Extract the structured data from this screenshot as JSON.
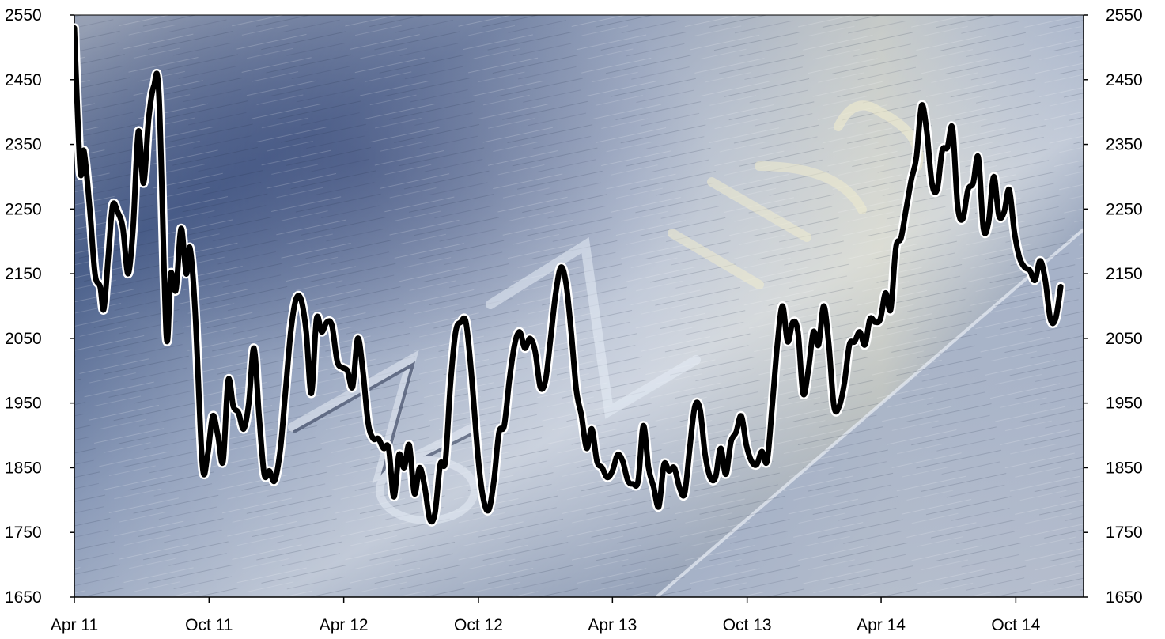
{
  "chart_data": {
    "type": "line",
    "title": "",
    "xlabel": "",
    "ylabel": "",
    "ylim": [
      1650,
      2550
    ],
    "yticks": [
      1650,
      1750,
      1850,
      1950,
      2050,
      2150,
      2250,
      2350,
      2450,
      2550
    ],
    "x_range": [
      "2011-04",
      "2015-01"
    ],
    "xticks": [
      {
        "date": "2011-04",
        "label": "Apr 11"
      },
      {
        "date": "2011-10",
        "label": "Oct 11"
      },
      {
        "date": "2012-04",
        "label": "Apr 12"
      },
      {
        "date": "2012-10",
        "label": "Oct 12"
      },
      {
        "date": "2013-04",
        "label": "Apr 13"
      },
      {
        "date": "2013-10",
        "label": "Oct 13"
      },
      {
        "date": "2014-04",
        "label": "Apr 14"
      },
      {
        "date": "2014-10",
        "label": "Oct 14"
      }
    ],
    "grid": false,
    "legend": "none",
    "background": "brushed zinc metal photo with embossed 'Zinc' lettering",
    "line_color": "#000000",
    "series": [
      {
        "points": [
          [
            "2011-04-01",
            2530
          ],
          [
            "2011-04-09",
            2310
          ],
          [
            "2011-04-14",
            2340
          ],
          [
            "2011-04-22",
            2250
          ],
          [
            "2011-04-29",
            2150
          ],
          [
            "2011-05-06",
            2130
          ],
          [
            "2011-05-11",
            2095
          ],
          [
            "2011-05-17",
            2175
          ],
          [
            "2011-05-23",
            2255
          ],
          [
            "2011-05-30",
            2245
          ],
          [
            "2011-06-06",
            2220
          ],
          [
            "2011-06-13",
            2150
          ],
          [
            "2011-06-20",
            2225
          ],
          [
            "2011-06-27",
            2370
          ],
          [
            "2011-07-04",
            2290
          ],
          [
            "2011-07-11",
            2390
          ],
          [
            "2011-07-18",
            2440
          ],
          [
            "2011-07-25",
            2425
          ],
          [
            "2011-08-04",
            2055
          ],
          [
            "2011-08-10",
            2150
          ],
          [
            "2011-08-17",
            2125
          ],
          [
            "2011-08-24",
            2220
          ],
          [
            "2011-08-31",
            2150
          ],
          [
            "2011-09-05",
            2190
          ],
          [
            "2011-09-12",
            2095
          ],
          [
            "2011-09-22",
            1855
          ],
          [
            "2011-09-29",
            1870
          ],
          [
            "2011-10-06",
            1930
          ],
          [
            "2011-10-13",
            1900
          ],
          [
            "2011-10-20",
            1860
          ],
          [
            "2011-10-27",
            1985
          ],
          [
            "2011-11-03",
            1945
          ],
          [
            "2011-11-10",
            1935
          ],
          [
            "2011-11-17",
            1910
          ],
          [
            "2011-11-24",
            1950
          ],
          [
            "2011-12-01",
            2035
          ],
          [
            "2011-12-08",
            1930
          ],
          [
            "2011-12-15",
            1840
          ],
          [
            "2011-12-22",
            1845
          ],
          [
            "2011-12-29",
            1830
          ],
          [
            "2012-01-06",
            1880
          ],
          [
            "2012-01-13",
            1970
          ],
          [
            "2012-01-20",
            2060
          ],
          [
            "2012-01-27",
            2110
          ],
          [
            "2012-02-03",
            2110
          ],
          [
            "2012-02-10",
            2060
          ],
          [
            "2012-02-17",
            1965
          ],
          [
            "2012-02-24",
            2080
          ],
          [
            "2012-03-02",
            2060
          ],
          [
            "2012-03-09",
            2075
          ],
          [
            "2012-03-16",
            2070
          ],
          [
            "2012-03-23",
            2015
          ],
          [
            "2012-03-30",
            2005
          ],
          [
            "2012-04-06",
            2000
          ],
          [
            "2012-04-13",
            1975
          ],
          [
            "2012-04-20",
            2050
          ],
          [
            "2012-04-27",
            2000
          ],
          [
            "2012-05-04",
            1920
          ],
          [
            "2012-05-11",
            1895
          ],
          [
            "2012-05-18",
            1895
          ],
          [
            "2012-05-25",
            1880
          ],
          [
            "2012-06-01",
            1880
          ],
          [
            "2012-06-08",
            1805
          ],
          [
            "2012-06-15",
            1870
          ],
          [
            "2012-06-22",
            1850
          ],
          [
            "2012-06-29",
            1885
          ],
          [
            "2012-07-06",
            1810
          ],
          [
            "2012-07-13",
            1850
          ],
          [
            "2012-07-20",
            1820
          ],
          [
            "2012-07-27",
            1770
          ],
          [
            "2012-08-03",
            1780
          ],
          [
            "2012-08-10",
            1855
          ],
          [
            "2012-08-17",
            1860
          ],
          [
            "2012-08-24",
            1980
          ],
          [
            "2012-08-31",
            2060
          ],
          [
            "2012-09-07",
            2075
          ],
          [
            "2012-09-14",
            2075
          ],
          [
            "2012-09-21",
            2000
          ],
          [
            "2012-10-01",
            1860
          ],
          [
            "2012-10-08",
            1800
          ],
          [
            "2012-10-15",
            1785
          ],
          [
            "2012-10-22",
            1830
          ],
          [
            "2012-10-29",
            1905
          ],
          [
            "2012-11-05",
            1915
          ],
          [
            "2012-11-12",
            1985
          ],
          [
            "2012-11-19",
            2040
          ],
          [
            "2012-11-26",
            2060
          ],
          [
            "2012-12-03",
            2035
          ],
          [
            "2012-12-10",
            2050
          ],
          [
            "2012-12-17",
            2030
          ],
          [
            "2012-12-24",
            1975
          ],
          [
            "2012-12-31",
            1985
          ],
          [
            "2013-01-07",
            2050
          ],
          [
            "2013-01-14",
            2120
          ],
          [
            "2013-01-21",
            2160
          ],
          [
            "2013-01-28",
            2135
          ],
          [
            "2013-02-04",
            2060
          ],
          [
            "2013-02-11",
            1970
          ],
          [
            "2013-02-18",
            1930
          ],
          [
            "2013-02-25",
            1880
          ],
          [
            "2013-03-04",
            1910
          ],
          [
            "2013-03-11",
            1860
          ],
          [
            "2013-03-18",
            1850
          ],
          [
            "2013-03-25",
            1835
          ],
          [
            "2013-04-01",
            1845
          ],
          [
            "2013-04-08",
            1870
          ],
          [
            "2013-04-15",
            1860
          ],
          [
            "2013-04-22",
            1830
          ],
          [
            "2013-04-29",
            1825
          ],
          [
            "2013-05-06",
            1830
          ],
          [
            "2013-05-13",
            1915
          ],
          [
            "2013-05-20",
            1850
          ],
          [
            "2013-05-27",
            1820
          ],
          [
            "2013-06-03",
            1790
          ],
          [
            "2013-06-10",
            1855
          ],
          [
            "2013-06-17",
            1845
          ],
          [
            "2013-06-24",
            1850
          ],
          [
            "2013-07-01",
            1820
          ],
          [
            "2013-07-08",
            1810
          ],
          [
            "2013-07-15",
            1880
          ],
          [
            "2013-07-22",
            1945
          ],
          [
            "2013-07-29",
            1940
          ],
          [
            "2013-08-05",
            1870
          ],
          [
            "2013-08-12",
            1835
          ],
          [
            "2013-08-19",
            1835
          ],
          [
            "2013-08-26",
            1880
          ],
          [
            "2013-09-02",
            1840
          ],
          [
            "2013-09-09",
            1890
          ],
          [
            "2013-09-16",
            1905
          ],
          [
            "2013-09-23",
            1930
          ],
          [
            "2013-09-30",
            1885
          ],
          [
            "2013-10-07",
            1860
          ],
          [
            "2013-10-14",
            1855
          ],
          [
            "2013-10-21",
            1875
          ],
          [
            "2013-10-28",
            1860
          ],
          [
            "2013-11-04",
            1945
          ],
          [
            "2013-11-11",
            2040
          ],
          [
            "2013-11-18",
            2100
          ],
          [
            "2013-11-25",
            2045
          ],
          [
            "2013-12-02",
            2075
          ],
          [
            "2013-12-09",
            2060
          ],
          [
            "2013-12-16",
            1965
          ],
          [
            "2013-12-23",
            2000
          ],
          [
            "2013-12-30",
            2060
          ],
          [
            "2014-01-06",
            2040
          ],
          [
            "2014-01-13",
            2100
          ],
          [
            "2014-01-20",
            2040
          ],
          [
            "2014-01-27",
            1945
          ],
          [
            "2014-02-03",
            1945
          ],
          [
            "2014-02-10",
            1980
          ],
          [
            "2014-02-17",
            2040
          ],
          [
            "2014-02-24",
            2045
          ],
          [
            "2014-03-03",
            2060
          ],
          [
            "2014-03-10",
            2040
          ],
          [
            "2014-03-17",
            2080
          ],
          [
            "2014-03-24",
            2075
          ],
          [
            "2014-03-31",
            2080
          ],
          [
            "2014-04-07",
            2120
          ],
          [
            "2014-04-14",
            2095
          ],
          [
            "2014-04-21",
            2190
          ],
          [
            "2014-04-28",
            2205
          ],
          [
            "2014-05-05",
            2250
          ],
          [
            "2014-05-12",
            2295
          ],
          [
            "2014-05-19",
            2330
          ],
          [
            "2014-05-26",
            2410
          ],
          [
            "2014-06-02",
            2370
          ],
          [
            "2014-06-09",
            2290
          ],
          [
            "2014-06-16",
            2280
          ],
          [
            "2014-06-23",
            2340
          ],
          [
            "2014-06-30",
            2345
          ],
          [
            "2014-07-07",
            2375
          ],
          [
            "2014-07-14",
            2255
          ],
          [
            "2014-07-21",
            2235
          ],
          [
            "2014-07-28",
            2280
          ],
          [
            "2014-08-04",
            2290
          ],
          [
            "2014-08-11",
            2330
          ],
          [
            "2014-08-18",
            2220
          ],
          [
            "2014-08-25",
            2230
          ],
          [
            "2014-09-01",
            2300
          ],
          [
            "2014-09-08",
            2240
          ],
          [
            "2014-09-15",
            2245
          ],
          [
            "2014-09-22",
            2280
          ],
          [
            "2014-09-29",
            2215
          ],
          [
            "2014-10-06",
            2175
          ],
          [
            "2014-10-13",
            2160
          ],
          [
            "2014-10-20",
            2155
          ],
          [
            "2014-10-27",
            2140
          ],
          [
            "2014-11-03",
            2170
          ],
          [
            "2014-11-10",
            2140
          ],
          [
            "2014-11-17",
            2080
          ],
          [
            "2014-11-24",
            2080
          ],
          [
            "2014-12-01",
            2130
          ]
        ]
      }
    ]
  }
}
